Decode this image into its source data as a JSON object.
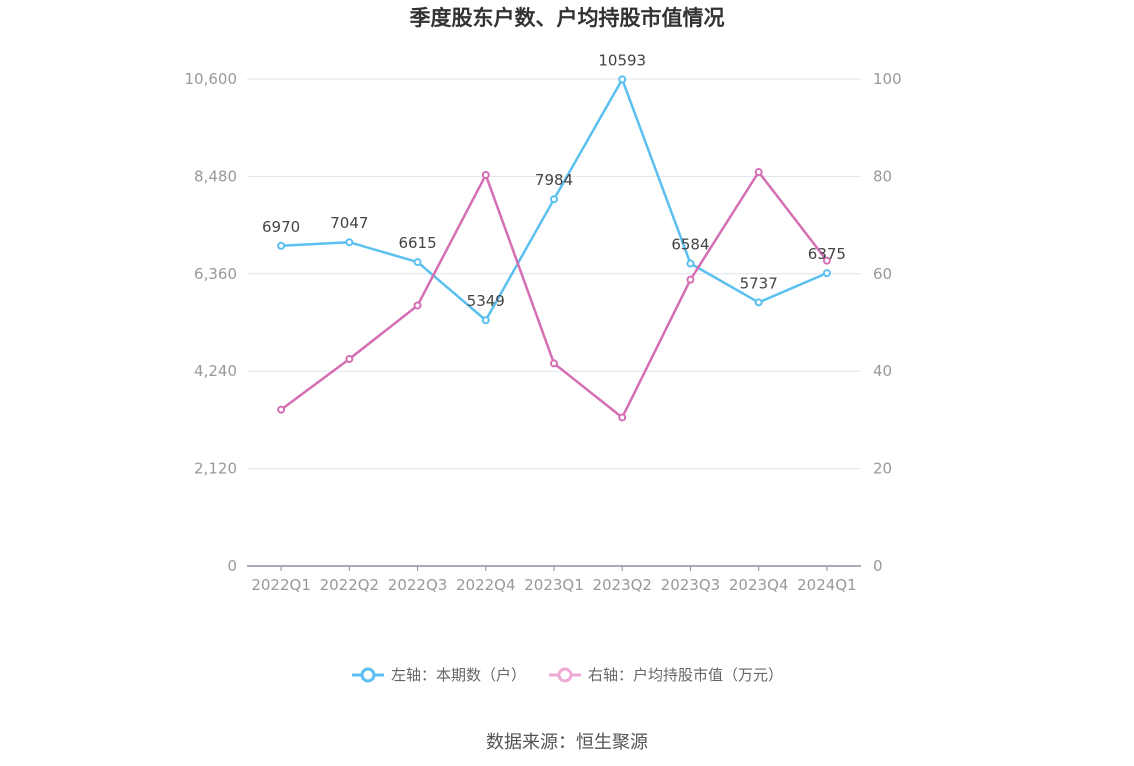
{
  "chart_data": {
    "type": "line",
    "title": "季度股东户数、户均持股市值情况",
    "categories": [
      "2022Q1",
      "2022Q2",
      "2022Q3",
      "2022Q4",
      "2023Q1",
      "2023Q2",
      "2023Q3",
      "2023Q4",
      "2024Q1"
    ],
    "y_left": {
      "ticks": [
        "0",
        "2,120",
        "4,240",
        "6,360",
        "8,480",
        "10,600"
      ],
      "lim": [
        0,
        10600
      ]
    },
    "y_right": {
      "ticks": [
        "0",
        "20",
        "40",
        "60",
        "80",
        "100"
      ],
      "lim": [
        0,
        100
      ]
    },
    "grid": true,
    "legend_position": "bottom",
    "series": [
      {
        "name": "左轴：本期数（户）",
        "axis": "left",
        "color": "#5bc0f0",
        "values": [
          6970,
          7047,
          6615,
          5349,
          7984,
          10593,
          6584,
          5737,
          6375
        ],
        "labels": [
          "6970",
          "7047",
          "6615",
          "5349",
          "7984",
          "10593",
          "6584",
          "5737",
          "6375"
        ]
      },
      {
        "name": "右轴：户均持股市值（万元）",
        "axis": "right",
        "color": "#d46fb4",
        "legend_color": "#eeaad4",
        "values": [
          32.1,
          42.5,
          53.5,
          80.3,
          41.6,
          30.5,
          58.8,
          80.9,
          62.7
        ]
      }
    ]
  },
  "source": "数据来源：恒生聚源"
}
